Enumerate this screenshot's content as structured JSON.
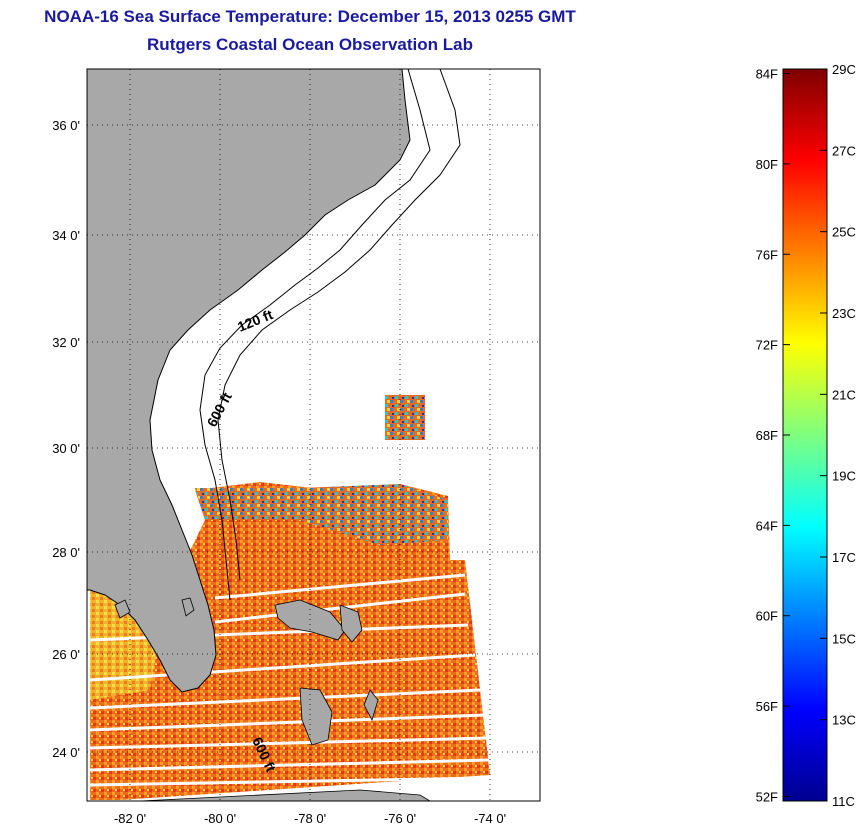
{
  "title_line1": "NOAA-16 Sea Surface Temperature:  December 15, 2013 0255 GMT",
  "title_line2": "Rutgers Coastal Ocean Observation Lab",
  "map": {
    "lat_ticks": [
      "36 0'",
      "34 0'",
      "32 0'",
      "30 0'",
      "28 0'",
      "26 0'",
      "24 0'"
    ],
    "lon_ticks": [
      "-82 0'",
      "-80 0'",
      "-78 0'",
      "-76 0'",
      "-74 0'"
    ],
    "contour_labels": [
      "120 ft",
      "600 ft",
      "600 ft"
    ],
    "land_color": "#a8a8a8",
    "cloud_color": "#ffffff"
  },
  "colorbar": {
    "fahrenheit_labels": [
      "84F",
      "80F",
      "76F",
      "72F",
      "68F",
      "64F",
      "60F",
      "56F",
      "52F"
    ],
    "celsius_labels": [
      "29C",
      "27C",
      "25C",
      "23C",
      "21C",
      "19C",
      "17C",
      "15C",
      "13C",
      "11C"
    ],
    "colormap": "jet",
    "min_c": 11,
    "max_c": 29
  }
}
